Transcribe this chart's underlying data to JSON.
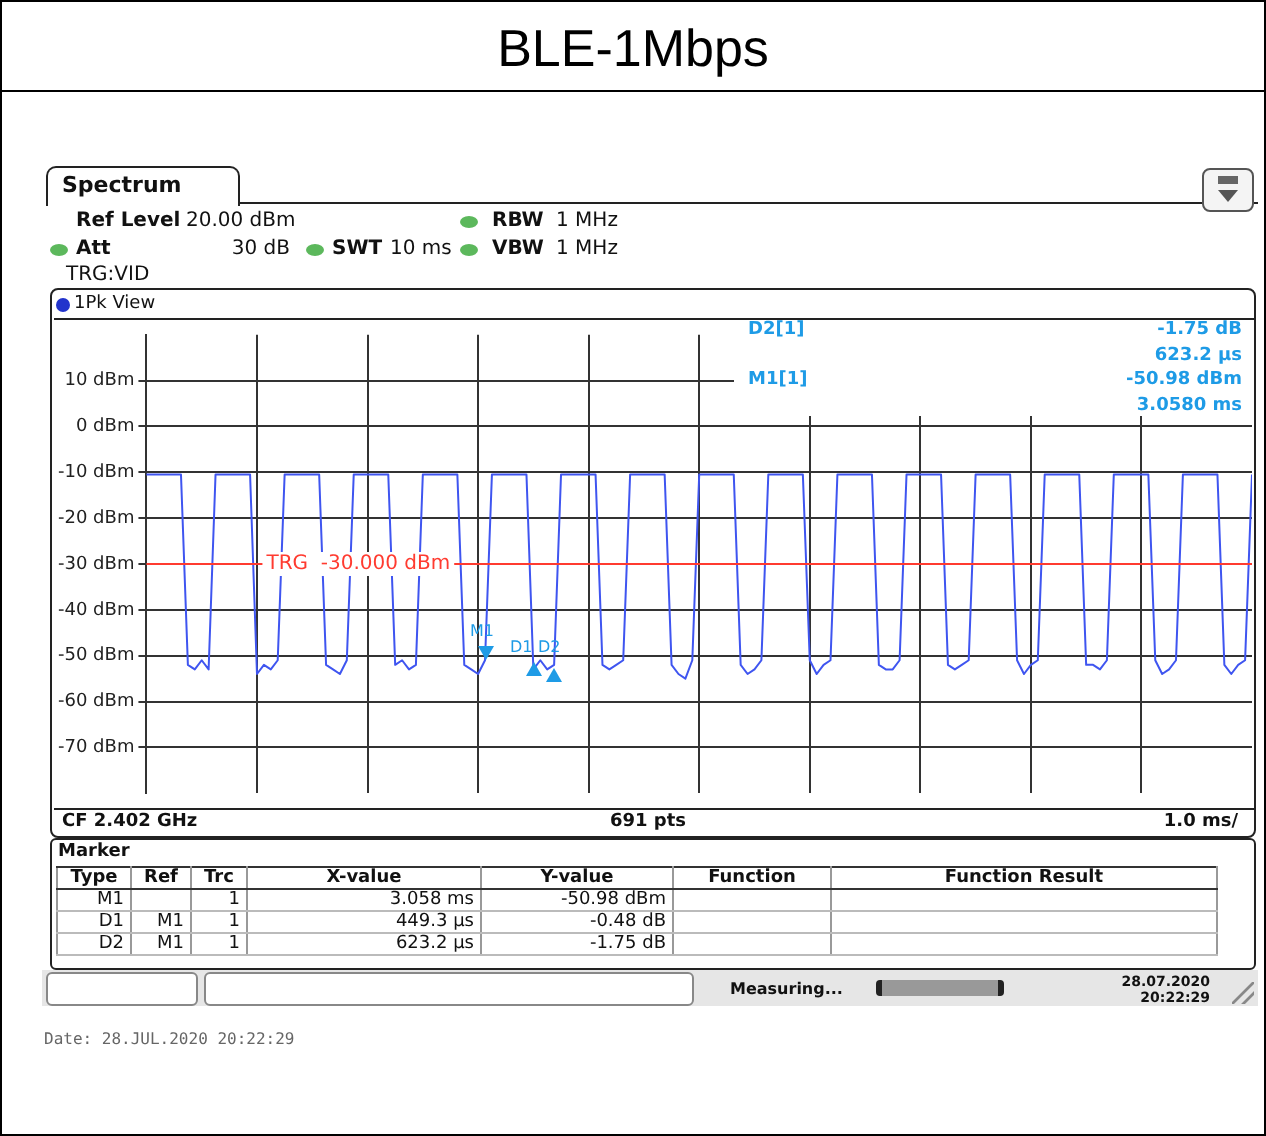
{
  "chart_data": {
    "type": "line",
    "title": "BLE-1Mbps",
    "categories": [
      null,
      null,
      null,
      null,
      null,
      null,
      null,
      null,
      null,
      null,
      null,
      null,
      null,
      null,
      null,
      null,
      null,
      null,
      null,
      null,
      null,
      null,
      null,
      null,
      null,
      null,
      null,
      null,
      null,
      null,
      null,
      null,
      null,
      null,
      null,
      null,
      null,
      null,
      null,
      null,
      null,
      null,
      null,
      null,
      null,
      null,
      null,
      null,
      null,
      null,
      null,
      null,
      null,
      null,
      null,
      null,
      null,
      null,
      null,
      null,
      null,
      null,
      null,
      null,
      null,
      null,
      null,
      null,
      null,
      null,
      null,
      null,
      null,
      null,
      null,
      null,
      null,
      null,
      null,
      null,
      null,
      null,
      null,
      null,
      null,
      null,
      null,
      null,
      null,
      null,
      null,
      null,
      null,
      null,
      null,
      null,
      null,
      null,
      null,
      null,
      null,
      null,
      null,
      null,
      null,
      null,
      null,
      null,
      null,
      null,
      null,
      null,
      null,
      null,
      null,
      null,
      null,
      null,
      null,
      null,
      null,
      null,
      null,
      null,
      null,
      null,
      null,
      null,
      null,
      null,
      null,
      null,
      null,
      null,
      null,
      null,
      null,
      null,
      null,
      null,
      null,
      null,
      null,
      null,
      null,
      null,
      null,
      null,
      null,
      null,
      null,
      null,
      null,
      null,
      null,
      null,
      null,
      null,
      null,
      null,
      null
    ],
    "ylim": [
      -80,
      20
    ],
    "yticks": [
      {
        "value": 10,
        "label": "10 dBm"
      },
      {
        "value": 0,
        "label": "0 dBm"
      },
      {
        "value": -10,
        "label": "-10 dBm"
      },
      {
        "value": -20,
        "label": "-20 dBm"
      },
      {
        "value": -30,
        "label": "-30 dBm"
      },
      {
        "value": -40,
        "label": "-40 dBm"
      },
      {
        "value": -50,
        "label": "-50 dBm"
      },
      {
        "value": -60,
        "label": "-60 dBm"
      },
      {
        "value": -70,
        "label": "-70 dBm"
      }
    ],
    "tick_labels": "y",
    "grid": true,
    "ref_lines": [
      {
        "axis": "y",
        "value": -30,
        "label": "TRG  -30.000 dBm",
        "color": "#ff3b30"
      }
    ],
    "series": [
      {
        "color": "#3f55f0",
        "values": [
          -10.5,
          -10.5,
          -10.5,
          -10.5,
          -10.5,
          -10.5,
          -52,
          -53,
          -51,
          -53,
          -10.5,
          -10.5,
          -10.5,
          -10.5,
          -10.5,
          -10.5,
          -54,
          -52,
          -53,
          -51,
          -10.5,
          -10.5,
          -10.5,
          -10.5,
          -10.5,
          -10.5,
          -52,
          -53,
          -54,
          -51,
          -10.5,
          -10.5,
          -10.5,
          -10.5,
          -10.5,
          -10.5,
          -52,
          -51,
          -53,
          -52,
          -10.5,
          -10.5,
          -10.5,
          -10.5,
          -10.5,
          -10.5,
          -52,
          -53,
          -54,
          -51,
          -10.5,
          -10.5,
          -10.5,
          -10.5,
          -10.5,
          -10.5,
          -53,
          -51,
          -53,
          -52,
          -10.5,
          -10.5,
          -10.5,
          -10.5,
          -10.5,
          -10.5,
          -52,
          -53,
          -52,
          -51,
          -10.5,
          -10.5,
          -10.5,
          -10.5,
          -10.5,
          -10.5,
          -52,
          -54,
          -55,
          -51,
          -10.5,
          -10.5,
          -10.5,
          -10.5,
          -10.5,
          -10.5,
          -52,
          -54,
          -53,
          -51,
          -10.5,
          -10.5,
          -10.5,
          -10.5,
          -10.5,
          -10.5,
          -51,
          -54,
          -52,
          -51,
          -10.5,
          -10.5,
          -10.5,
          -10.5,
          -10.5,
          -10.5,
          -52,
          -53,
          -53,
          -51,
          -10.5,
          -10.5,
          -10.5,
          -10.5,
          -10.5,
          -10.5,
          -52,
          -53,
          -52,
          -51,
          -10.5,
          -10.5,
          -10.5,
          -10.5,
          -10.5,
          -10.5,
          -51,
          -54,
          -52,
          -51,
          -10.5,
          -10.5,
          -10.5,
          -10.5,
          -10.5,
          -10.5,
          -52,
          -52,
          -53,
          -51,
          -10.5,
          -10.5,
          -10.5,
          -10.5,
          -10.5,
          -10.5,
          -51,
          -54,
          -53,
          -51,
          -10.5,
          -10.5,
          -10.5,
          -10.5,
          -10.5,
          -10.5,
          -52,
          -54,
          -52,
          -51,
          -10.5
        ]
      }
    ],
    "annotations": [
      "Spectrum",
      "Ref Level",
      "20.00 dBm",
      "Att",
      "30 dB",
      "SWT",
      "10 ms",
      "RBW",
      "1 MHz",
      "VBW",
      "1 MHz",
      "TRG:VID",
      "1Pk View",
      "D2[1]",
      "-1.75 dB",
      "623.2 µs",
      "M1[1]",
      "-50.98 dBm",
      "3.0580 ms",
      "CF 2.402 GHz",
      "691 pts",
      "1.0 ms/",
      "Marker",
      "Type",
      "Ref",
      "Trc",
      "X-value",
      "Y-value",
      "Function",
      "Function Result",
      "M1",
      "1",
      "3.058 ms",
      "-50.98 dBm",
      "D1",
      "M1",
      "1",
      "449.3 µs",
      "-0.48 dB",
      "D2",
      "M1",
      "1",
      "623.2 µs",
      "-1.75 dB",
      "Measuring...",
      "28.07.2020",
      "20:22:29",
      "Date: 28.JUL.2020  20:22:29",
      "M1",
      "D1",
      "D2"
    ]
  }
}
